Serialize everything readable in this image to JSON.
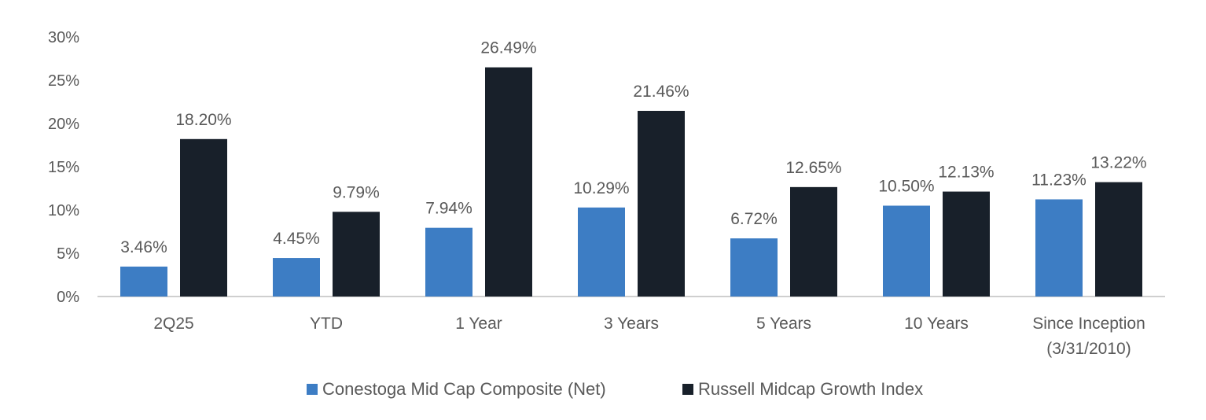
{
  "chart_data": {
    "type": "bar",
    "title": "",
    "xlabel": "",
    "ylabel": "",
    "ylim": [
      0,
      30
    ],
    "yticks": [
      0,
      5,
      10,
      15,
      20,
      25,
      30
    ],
    "ytick_labels": [
      "0%",
      "5%",
      "10%",
      "15%",
      "20%",
      "25%",
      "30%"
    ],
    "grid": false,
    "legend_position": "bottom",
    "categories": [
      [
        "2Q25"
      ],
      [
        "YTD"
      ],
      [
        "1 Year"
      ],
      [
        "3 Years"
      ],
      [
        "5 Years"
      ],
      [
        "10 Years"
      ],
      [
        "Since Inception",
        "(3/31/2010)"
      ]
    ],
    "series": [
      {
        "name": "Conestoga Mid Cap Composite (Net)",
        "color": "#3d7dc4",
        "values": [
          3.46,
          4.45,
          7.94,
          10.29,
          6.72,
          10.5,
          11.23
        ],
        "labels": [
          "3.46%",
          "4.45%",
          "7.94%",
          "10.29%",
          "6.72%",
          "10.50%",
          "11.23%"
        ]
      },
      {
        "name": "Russell Midcap Growth Index",
        "color": "#18202a",
        "values": [
          18.2,
          9.79,
          26.49,
          21.46,
          12.65,
          12.13,
          13.22
        ],
        "labels": [
          "18.20%",
          "9.79%",
          "26.49%",
          "21.46%",
          "12.65%",
          "12.13%",
          "13.22%"
        ]
      }
    ]
  }
}
